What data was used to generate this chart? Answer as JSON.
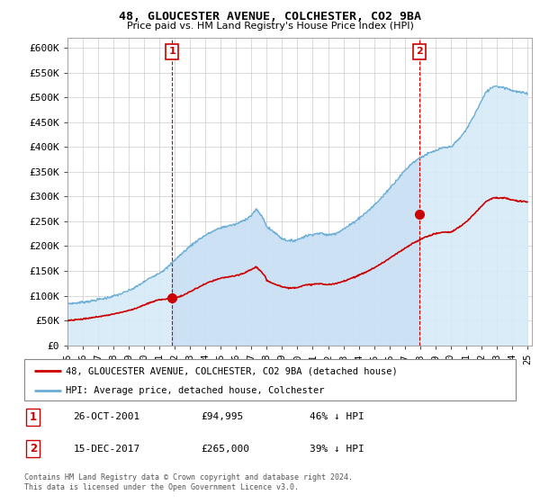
{
  "title": "48, GLOUCESTER AVENUE, COLCHESTER, CO2 9BA",
  "subtitle": "Price paid vs. HM Land Registry's House Price Index (HPI)",
  "legend_line1": "48, GLOUCESTER AVENUE, COLCHESTER, CO2 9BA (detached house)",
  "legend_line2": "HPI: Average price, detached house, Colchester",
  "annotation1_date": "26-OCT-2001",
  "annotation1_price": "£94,995",
  "annotation1_text": "46% ↓ HPI",
  "annotation2_date": "15-DEC-2017",
  "annotation2_price": "£265,000",
  "annotation2_text": "39% ↓ HPI",
  "footer": "Contains HM Land Registry data © Crown copyright and database right 2024.\nThis data is licensed under the Open Government Licence v3.0.",
  "hpi_color": "#6baed6",
  "hpi_fill_color": "#d6eaf8",
  "price_color": "#cc0000",
  "ylim_min": 0,
  "ylim_max": 620000,
  "yticks": [
    0,
    50000,
    100000,
    150000,
    200000,
    250000,
    300000,
    350000,
    400000,
    450000,
    500000,
    550000,
    600000
  ],
  "ytick_labels": [
    "£0",
    "£50K",
    "£100K",
    "£150K",
    "£200K",
    "£250K",
    "£300K",
    "£350K",
    "£400K",
    "£450K",
    "£500K",
    "£550K",
    "£600K"
  ],
  "sale1_year": 2001.82,
  "sale1_price": 94995,
  "sale2_year": 2017.96,
  "sale2_price": 265000,
  "key_years": [
    1995,
    1995.5,
    1996,
    1996.5,
    1997,
    1997.5,
    1998,
    1998.5,
    1999,
    1999.5,
    2000,
    2000.5,
    2001,
    2001.5,
    2002,
    2002.5,
    2003,
    2003.5,
    2004,
    2004.5,
    2005,
    2005.5,
    2006,
    2006.5,
    2007,
    2007.3,
    2007.6,
    2007.9,
    2008,
    2008.5,
    2009,
    2009.5,
    2010,
    2010.5,
    2011,
    2011.5,
    2012,
    2012.5,
    2013,
    2013.5,
    2014,
    2014.5,
    2015,
    2015.5,
    2016,
    2016.5,
    2017,
    2017.5,
    2018,
    2018.5,
    2019,
    2019.5,
    2020,
    2020.5,
    2021,
    2021.5,
    2022,
    2022.3,
    2022.6,
    2022.9,
    2023,
    2023.5,
    2024,
    2024.5,
    2025
  ],
  "key_hpi": [
    84000,
    85000,
    87000,
    89000,
    92000,
    95000,
    99000,
    104000,
    110000,
    118000,
    128000,
    138000,
    146000,
    156000,
    172000,
    186000,
    200000,
    212000,
    222000,
    230000,
    237000,
    241000,
    244000,
    252000,
    262000,
    274000,
    264000,
    248000,
    238000,
    228000,
    215000,
    210000,
    213000,
    220000,
    224000,
    226000,
    222000,
    226000,
    234000,
    244000,
    256000,
    268000,
    282000,
    298000,
    316000,
    334000,
    352000,
    368000,
    378000,
    386000,
    392000,
    398000,
    400000,
    414000,
    434000,
    462000,
    492000,
    510000,
    518000,
    524000,
    522000,
    520000,
    514000,
    510000,
    508000
  ],
  "key_price": [
    50000,
    51500,
    53000,
    55000,
    57500,
    60000,
    63000,
    66500,
    70000,
    75000,
    81000,
    87000,
    92000,
    93500,
    94995,
    100000,
    108000,
    116000,
    124000,
    130000,
    135000,
    138000,
    140000,
    145000,
    153000,
    158000,
    150000,
    138000,
    130000,
    124000,
    118000,
    115000,
    117000,
    121000,
    123000,
    124000,
    122000,
    124000,
    129000,
    135000,
    141000,
    148000,
    156000,
    165000,
    175000,
    185000,
    195000,
    205000,
    213000,
    220000,
    225000,
    228000,
    228000,
    237000,
    248000,
    264000,
    280000,
    290000,
    295000,
    298000,
    297000,
    297000,
    293000,
    290000,
    290000
  ]
}
